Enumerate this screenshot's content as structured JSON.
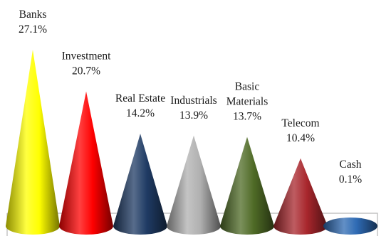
{
  "chart_data": {
    "type": "bar",
    "style": "3d-cone",
    "categories": [
      "Banks",
      "Investment",
      "Real Estate",
      "Industrials",
      "Basic Materials",
      "Telecom",
      "Cash"
    ],
    "label_lines": [
      [
        "Banks"
      ],
      [
        "Investment"
      ],
      [
        "Real Estate"
      ],
      [
        "Industrials"
      ],
      [
        "Basic",
        "Materials"
      ],
      [
        "Telecom"
      ],
      [
        "Cash"
      ]
    ],
    "values": [
      27.1,
      20.7,
      14.2,
      13.9,
      13.7,
      10.4,
      0.1
    ],
    "value_labels": [
      "27.1%",
      "20.7%",
      "14.2%",
      "13.9%",
      "13.7%",
      "10.4%",
      "0.1%"
    ],
    "colors": [
      "#ffff00",
      "#ff0000",
      "#1f3b64",
      "#b0b0b0",
      "#4f6b26",
      "#a8262c",
      "#2e6ab3"
    ],
    "title": "",
    "xlabel": "",
    "ylabel": "",
    "ylim": [
      0,
      27.1
    ],
    "grid": false,
    "legend": "none"
  }
}
